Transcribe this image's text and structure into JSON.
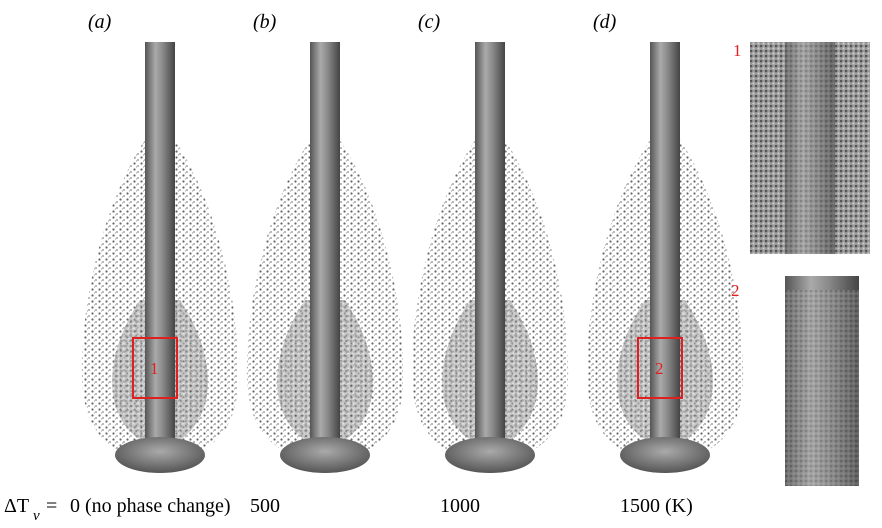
{
  "panels": [
    {
      "label": "(a)",
      "caption": "0 (no phase change)",
      "box": "1"
    },
    {
      "label": "(b)",
      "caption": "500"
    },
    {
      "label": "(c)",
      "caption": "1000"
    },
    {
      "label": "(d)",
      "caption": "1500 (K)",
      "box": "2"
    }
  ],
  "caption_prefix": {
    "symbol": "ΔT",
    "subscript": "ν",
    "equals": "="
  },
  "insets": [
    {
      "label": "1"
    },
    {
      "label": "2"
    }
  ]
}
